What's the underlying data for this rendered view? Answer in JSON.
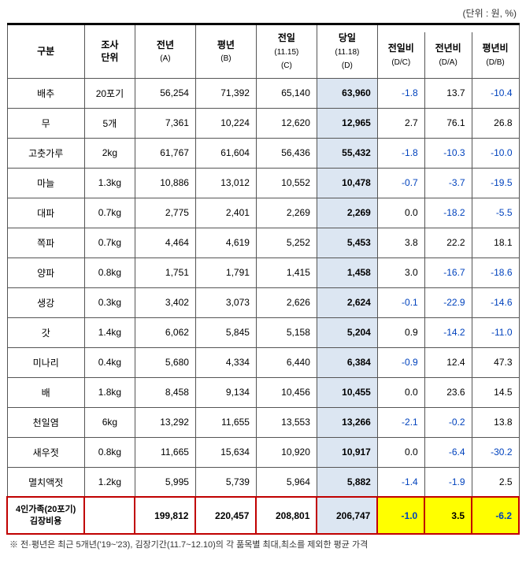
{
  "unit_label": "(단위 : 원, %)",
  "header": {
    "col1": "구분",
    "col2": {
      "line1": "조사",
      "line2": "단위"
    },
    "col3": {
      "line1": "전년",
      "line2": "(A)"
    },
    "col4": {
      "line1": "평년",
      "line2": "(B)"
    },
    "col5": {
      "line1": "전일",
      "line2": "(11.15)",
      "line3": "(C)"
    },
    "col6": {
      "line1": "당일",
      "line2": "(11.18)",
      "line3": "(D)"
    },
    "col7": {
      "line1": "전일비",
      "line2": "(D/C)"
    },
    "col8": {
      "line1": "전년비",
      "line2": "(D/A)"
    },
    "col9": {
      "line1": "평년비",
      "line2": "(D/B)"
    }
  },
  "rows": [
    {
      "name": "배추",
      "unit": "20포기",
      "a": "56,254",
      "b": "71,392",
      "c": "65,140",
      "d": "63,960",
      "dc": "-1.8",
      "da": "13.7",
      "db": "-10.4"
    },
    {
      "name": "무",
      "unit": "5개",
      "a": "7,361",
      "b": "10,224",
      "c": "12,620",
      "d": "12,965",
      "dc": "2.7",
      "da": "76.1",
      "db": "26.8"
    },
    {
      "name": "고춧가루",
      "unit": "2kg",
      "a": "61,767",
      "b": "61,604",
      "c": "56,436",
      "d": "55,432",
      "dc": "-1.8",
      "da": "-10.3",
      "db": "-10.0"
    },
    {
      "name": "마늘",
      "unit": "1.3kg",
      "a": "10,886",
      "b": "13,012",
      "c": "10,552",
      "d": "10,478",
      "dc": "-0.7",
      "da": "-3.7",
      "db": "-19.5"
    },
    {
      "name": "대파",
      "unit": "0.7kg",
      "a": "2,775",
      "b": "2,401",
      "c": "2,269",
      "d": "2,269",
      "dc": "0.0",
      "da": "-18.2",
      "db": "-5.5"
    },
    {
      "name": "쪽파",
      "unit": "0.7kg",
      "a": "4,464",
      "b": "4,619",
      "c": "5,252",
      "d": "5,453",
      "dc": "3.8",
      "da": "22.2",
      "db": "18.1"
    },
    {
      "name": "양파",
      "unit": "0.8kg",
      "a": "1,751",
      "b": "1,791",
      "c": "1,415",
      "d": "1,458",
      "dc": "3.0",
      "da": "-16.7",
      "db": "-18.6"
    },
    {
      "name": "생강",
      "unit": "0.3kg",
      "a": "3,402",
      "b": "3,073",
      "c": "2,626",
      "d": "2,624",
      "dc": "-0.1",
      "da": "-22.9",
      "db": "-14.6"
    },
    {
      "name": "갓",
      "unit": "1.4kg",
      "a": "6,062",
      "b": "5,845",
      "c": "5,158",
      "d": "5,204",
      "dc": "0.9",
      "da": "-14.2",
      "db": "-11.0"
    },
    {
      "name": "미나리",
      "unit": "0.4kg",
      "a": "5,680",
      "b": "4,334",
      "c": "6,440",
      "d": "6,384",
      "dc": "-0.9",
      "da": "12.4",
      "db": "47.3"
    },
    {
      "name": "배",
      "unit": "1.8kg",
      "a": "8,458",
      "b": "9,134",
      "c": "10,456",
      "d": "10,455",
      "dc": "0.0",
      "da": "23.6",
      "db": "14.5"
    },
    {
      "name": "천일염",
      "unit": "6kg",
      "a": "13,292",
      "b": "11,655",
      "c": "13,553",
      "d": "13,266",
      "dc": "-2.1",
      "da": "-0.2",
      "db": "13.8"
    },
    {
      "name": "새우젓",
      "unit": "0.8kg",
      "a": "11,665",
      "b": "15,634",
      "c": "10,920",
      "d": "10,917",
      "dc": "0.0",
      "da": "-6.4",
      "db": "-30.2"
    },
    {
      "name": "멸치액젓",
      "unit": "1.2kg",
      "a": "5,995",
      "b": "5,739",
      "c": "5,964",
      "d": "5,882",
      "dc": "-1.4",
      "da": "-1.9",
      "db": "2.5"
    }
  ],
  "total": {
    "label_line1": "4인가족(20포기)",
    "label_line2": "김장비용",
    "a": "199,812",
    "b": "220,457",
    "c": "208,801",
    "d": "206,747",
    "dc": "-1.0",
    "da": "3.5",
    "db": "-6.2"
  },
  "footnote": "※ 전·평년은 최근 5개년('19~'23), 김장기간(11.7~12.10)의 각 품목별 최대,최소를 제외한 평균 가격",
  "colors": {
    "highlight_bg": "#dce6f2",
    "negative_text": "#0042bd",
    "total_border": "#c00000",
    "yellow_bg": "#ffff00",
    "border": "#555555",
    "top_border": "#000000"
  },
  "col_widths": {
    "name": 92,
    "unit": 60,
    "a": 72,
    "b": 72,
    "c": 72,
    "d": 72,
    "dc": 56,
    "da": 56,
    "db": 56
  }
}
